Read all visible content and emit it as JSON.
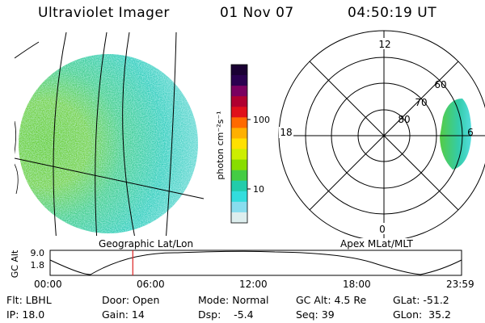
{
  "header": {
    "title": "Ultraviolet Imager",
    "date": "01 Nov 07",
    "time": "04:50:19 UT"
  },
  "left_panel": {
    "label": "Geographic Lat/Lon"
  },
  "colorbar": {
    "unit": "photon cm⁻²s⁻¹",
    "ticks": [
      "100",
      "10"
    ],
    "colors": [
      "#1a0033",
      "#2a0050",
      "#7a0060",
      "#b00030",
      "#e0101a",
      "#ff6a00",
      "#ffb000",
      "#ffe000",
      "#ccee00",
      "#88dd00",
      "#44cc44",
      "#22ccaa",
      "#33dddd",
      "#88ddee",
      "#ddeeee"
    ]
  },
  "polar_plot": {
    "label": "Apex MLat/MLT",
    "mlt_labels": {
      "top": "12",
      "left": "18",
      "right": "6",
      "bottom": "0"
    },
    "mlat_labels": [
      "60",
      "70",
      "80"
    ]
  },
  "altitude_strip": {
    "ylabel": "GC Alt",
    "ymax": "9.0",
    "ymin": "1.8",
    "time_ticks": [
      "00:00",
      "06:00",
      "12:00",
      "18:00",
      "23:59"
    ],
    "current_time_fraction": 0.201,
    "marker_color": "#dd2222"
  },
  "info": {
    "flt": "Flt: LBHL",
    "ip": "IP: 18.0",
    "door": "Door: Open",
    "gain": "Gain: 14",
    "mode": "Mode: Normal",
    "dsp": "Dsp:    -5.4",
    "gcalt": "GC Alt: 4.5 Re",
    "seq": "Seq: 39",
    "glat": "GLat: -51.2",
    "glon": "GLon:  35.2"
  }
}
